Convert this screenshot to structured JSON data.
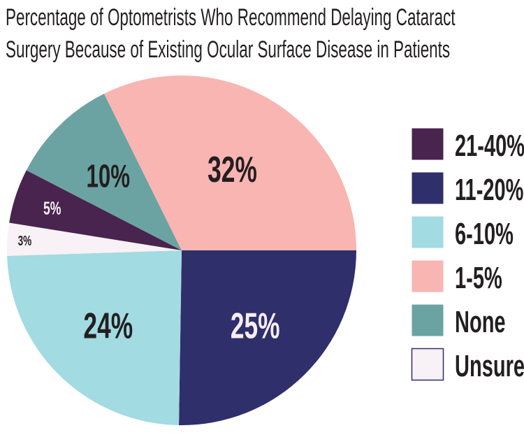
{
  "chart_data": {
    "type": "pie",
    "title_lines": [
      "Percentage of Optometrists Who Recommend Delaying Cataract",
      "Surgery Because of Existing Ocular Surface Disease in Patients"
    ],
    "slices": [
      {
        "label": "11-20%",
        "value": 25,
        "display": "25%",
        "color": "#2f2f6c",
        "text_color": "#f7eef3"
      },
      {
        "label": "6-10%",
        "value": 24,
        "display": "24%",
        "color": "#a2dbe1",
        "text_color": "#231f20"
      },
      {
        "label": "Unsure",
        "value": 3,
        "display": "3%",
        "color": "#f8f1f5",
        "text_color": "#231f20"
      },
      {
        "label": "21-40%",
        "value": 5,
        "display": "5%",
        "color": "#48244e",
        "text_color": "#f7eef3"
      },
      {
        "label": "None",
        "value": 10,
        "display": "10%",
        "color": "#6ba3a3",
        "text_color": "#231f20"
      },
      {
        "label": "1-5%",
        "value": 32,
        "display": "32%",
        "color": "#f8b5b2",
        "text_color": "#231f20"
      }
    ],
    "legend": [
      {
        "label": "21-40%",
        "color": "#48244e"
      },
      {
        "label": "11-20%",
        "color": "#2f2f6c"
      },
      {
        "label": "6-10%",
        "color": "#a2dbe1"
      },
      {
        "label": "1-5%",
        "color": "#f8b5b2"
      },
      {
        "label": "None",
        "color": "#6ba3a3"
      },
      {
        "label": "Unsure",
        "color": "#f8f1f5",
        "border": "#2f2f6c"
      }
    ],
    "legend_position": "right"
  }
}
